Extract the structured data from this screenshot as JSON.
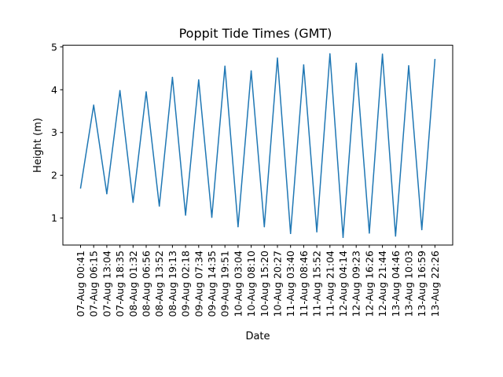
{
  "chart_data": {
    "type": "line",
    "title": "Poppit Tide Times (GMT)",
    "xlabel": "Date",
    "ylabel": "Height (m)",
    "ylim": [
      0.37,
      5.04
    ],
    "yticks": [
      1,
      2,
      3,
      4,
      5
    ],
    "grid": false,
    "categories": [
      "07-Aug 00:41",
      "07-Aug 06:15",
      "07-Aug 13:04",
      "07-Aug 18:35",
      "08-Aug 01:32",
      "08-Aug 06:56",
      "08-Aug 13:52",
      "08-Aug 19:13",
      "09-Aug 02:18",
      "09-Aug 07:34",
      "09-Aug 14:35",
      "09-Aug 19:51",
      "10-Aug 03:04",
      "10-Aug 08:10",
      "10-Aug 15:20",
      "10-Aug 20:27",
      "11-Aug 03:40",
      "11-Aug 08:46",
      "11-Aug 15:52",
      "11-Aug 21:04",
      "12-Aug 04:14",
      "12-Aug 09:23",
      "12-Aug 16:26",
      "12-Aug 21:44",
      "13-Aug 04:46",
      "13-Aug 10:03",
      "13-Aug 16:59",
      "13-Aug 22:26"
    ],
    "series": [
      {
        "color": "#1f77b4",
        "values": [
          1.7,
          3.64,
          1.57,
          3.98,
          1.37,
          3.95,
          1.28,
          4.29,
          1.07,
          4.23,
          1.02,
          4.55,
          0.8,
          4.44,
          0.8,
          4.74,
          0.64,
          4.58,
          0.68,
          4.84,
          0.55,
          4.62,
          0.65,
          4.83,
          0.58,
          4.56,
          0.73,
          4.71
        ]
      }
    ]
  }
}
